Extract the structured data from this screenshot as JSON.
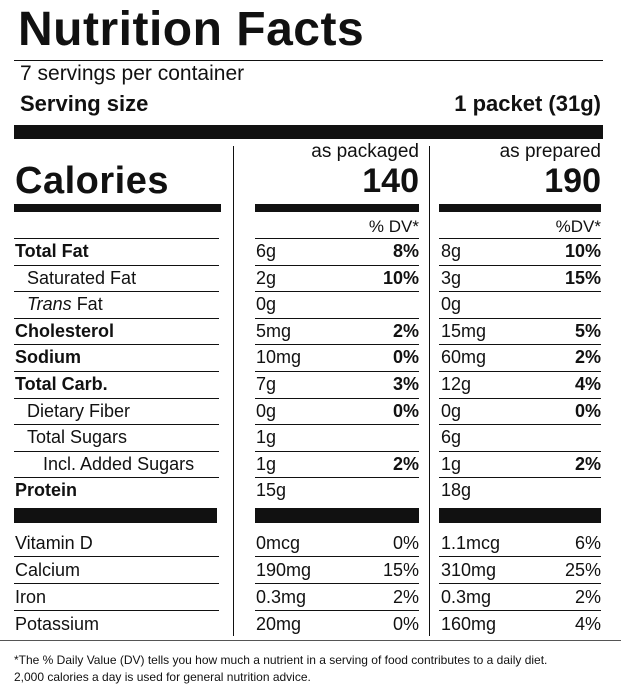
{
  "title": "Nutrition Facts",
  "servings_per_container": "7 servings per container",
  "serving_size_label": "Serving size",
  "serving_size_value": "1 packet (31g)",
  "calories_label": "Calories",
  "columns": [
    {
      "header": "as packaged",
      "calories": "140",
      "dv_header": "% DV*"
    },
    {
      "header": "as prepared",
      "calories": "190",
      "dv_header": "%DV*"
    }
  ],
  "nutrients": [
    {
      "name": "Total Fat",
      "style": "bold",
      "indent": 0,
      "packaged": {
        "amount": "6g",
        "dv": "8%"
      },
      "prepared": {
        "amount": "8g",
        "dv": "10%"
      }
    },
    {
      "name": "Saturated Fat",
      "style": "normal",
      "indent": 1,
      "packaged": {
        "amount": "2g",
        "dv": "10%"
      },
      "prepared": {
        "amount": "3g",
        "dv": "15%"
      }
    },
    {
      "name": "Trans Fat",
      "style": "trans",
      "indent": 1,
      "packaged": {
        "amount": "0g",
        "dv": ""
      },
      "prepared": {
        "amount": "0g",
        "dv": ""
      }
    },
    {
      "name": "Cholesterol",
      "style": "bold",
      "indent": 0,
      "packaged": {
        "amount": "5mg",
        "dv": "2%"
      },
      "prepared": {
        "amount": "15mg",
        "dv": "5%"
      }
    },
    {
      "name": "Sodium",
      "style": "bold",
      "indent": 0,
      "packaged": {
        "amount": "10mg",
        "dv": "0%"
      },
      "prepared": {
        "amount": "60mg",
        "dv": "2%"
      }
    },
    {
      "name": "Total Carb.",
      "style": "bold",
      "indent": 0,
      "packaged": {
        "amount": "7g",
        "dv": "3%"
      },
      "prepared": {
        "amount": "12g",
        "dv": "4%"
      }
    },
    {
      "name": "Dietary Fiber",
      "style": "normal",
      "indent": 1,
      "packaged": {
        "amount": "0g",
        "dv": "0%"
      },
      "prepared": {
        "amount": "0g",
        "dv": "0%"
      }
    },
    {
      "name": "Total Sugars",
      "style": "normal",
      "indent": 1,
      "packaged": {
        "amount": "1g",
        "dv": ""
      },
      "prepared": {
        "amount": "6g",
        "dv": ""
      }
    },
    {
      "name": "Incl. Added Sugars",
      "style": "normal",
      "indent": 2,
      "packaged": {
        "amount": "1g",
        "dv": "2%"
      },
      "prepared": {
        "amount": "1g",
        "dv": "2%"
      }
    },
    {
      "name": "Protein",
      "style": "bold",
      "indent": 0,
      "packaged": {
        "amount": "15g",
        "dv": ""
      },
      "prepared": {
        "amount": "18g",
        "dv": ""
      }
    }
  ],
  "vitamins": [
    {
      "name": "Vitamin D",
      "packaged": {
        "amount": "0mcg",
        "dv": "0%"
      },
      "prepared": {
        "amount": "1.1mcg",
        "dv": "6%"
      }
    },
    {
      "name": "Calcium",
      "packaged": {
        "amount": "190mg",
        "dv": "15%"
      },
      "prepared": {
        "amount": "310mg",
        "dv": "25%"
      }
    },
    {
      "name": "Iron",
      "packaged": {
        "amount": "0.3mg",
        "dv": "2%"
      },
      "prepared": {
        "amount": "0.3mg",
        "dv": "2%"
      }
    },
    {
      "name": "Potassium",
      "packaged": {
        "amount": "20mg",
        "dv": "0%"
      },
      "prepared": {
        "amount": "160mg",
        "dv": "4%"
      }
    }
  ],
  "footnote_lines": [
    "*The % Daily Value (DV) tells you how much a nutrient in a serving of food contributes to a daily diet.",
    "2,000 calories a day is used for general nutrition advice."
  ]
}
